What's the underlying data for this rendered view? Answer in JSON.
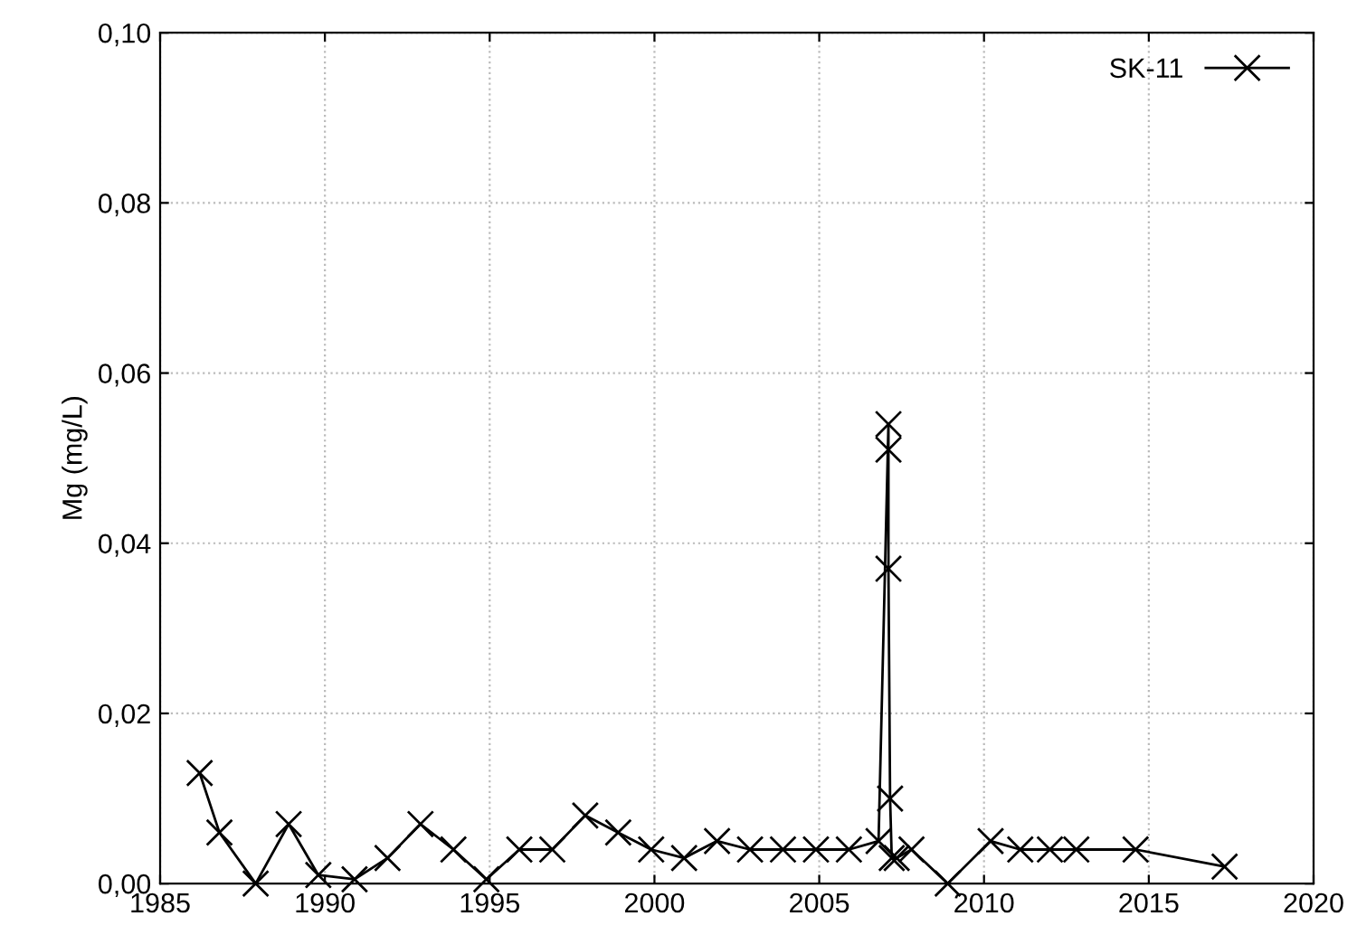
{
  "chart_data": {
    "type": "line",
    "ylabel": "Mg (mg/L)",
    "xlim": [
      1985,
      2020
    ],
    "ylim": [
      0,
      0.1
    ],
    "xticks": [
      1985,
      1990,
      1995,
      2000,
      2005,
      2010,
      2015,
      2020
    ],
    "yticks": [
      {
        "value": 0,
        "label": "0,00"
      },
      {
        "value": 0.02,
        "label": "0,02"
      },
      {
        "value": 0.04,
        "label": "0,04"
      },
      {
        "value": 0.06,
        "label": "0,06"
      },
      {
        "value": 0.08,
        "label": "0,08"
      },
      {
        "value": 0.1,
        "label": "0,10"
      }
    ],
    "grid": true,
    "legend": "top right",
    "marker": "cross",
    "line_style": "solid",
    "series": [
      {
        "name": "SK-11",
        "color": "#000000",
        "x": [
          1986.2,
          1986.8,
          1987.9,
          1988.9,
          1989.8,
          1990.9,
          1991.9,
          1992.9,
          1993.9,
          1994.9,
          1995.9,
          1996.9,
          1997.9,
          1998.9,
          1999.9,
          2000.9,
          2001.9,
          2002.9,
          2003.9,
          2004.9,
          2005.9,
          2006.8,
          2007.1,
          2007.1,
          2007.1,
          2007.15,
          2007.2,
          2007.35,
          2007.8,
          2008.9,
          2010.2,
          2011.1,
          2012.0,
          2012.8,
          2014.6,
          2017.3
        ],
        "values": [
          0.013,
          0.006,
          0.0,
          0.007,
          0.001,
          0.0005,
          0.003,
          0.007,
          0.004,
          0.0005,
          0.004,
          0.004,
          0.008,
          0.006,
          0.004,
          0.003,
          0.005,
          0.004,
          0.004,
          0.004,
          0.004,
          0.005,
          0.054,
          0.051,
          0.037,
          0.01,
          0.003,
          0.003,
          0.004,
          0.0,
          0.005,
          0.004,
          0.004,
          0.004,
          0.004,
          0.002
        ]
      }
    ]
  }
}
